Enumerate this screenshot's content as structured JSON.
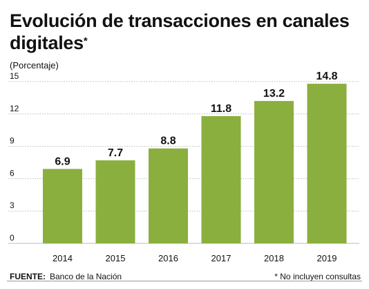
{
  "title_line1": "Evolución de transacciones en canales",
  "title_line2": "digitales",
  "title_marker": "*",
  "footer": {
    "source_label": "FUENTE:",
    "source_text": "Banco de la Nación",
    "note": "* No incluyen consultas"
  },
  "colors": {
    "bar": "#8aaf3e",
    "grid": "#b8b8b8",
    "text": "#111111"
  },
  "chart_data": {
    "type": "bar",
    "title": "Evolución de transacciones en canales digitales*",
    "ylabel": "(Porcentaje)",
    "xlabel": "",
    "categories": [
      "2014",
      "2015",
      "2016",
      "2017",
      "2018",
      "2019"
    ],
    "values": [
      6.9,
      7.7,
      8.8,
      11.8,
      13.2,
      14.8
    ],
    "value_labels": [
      "6.9",
      "7.7",
      "8.8",
      "11.8",
      "13.2",
      "14.8"
    ],
    "ylim": [
      0,
      15
    ],
    "yticks": [
      0,
      3,
      6,
      9,
      12,
      15
    ],
    "grid": true,
    "legend": "none"
  }
}
